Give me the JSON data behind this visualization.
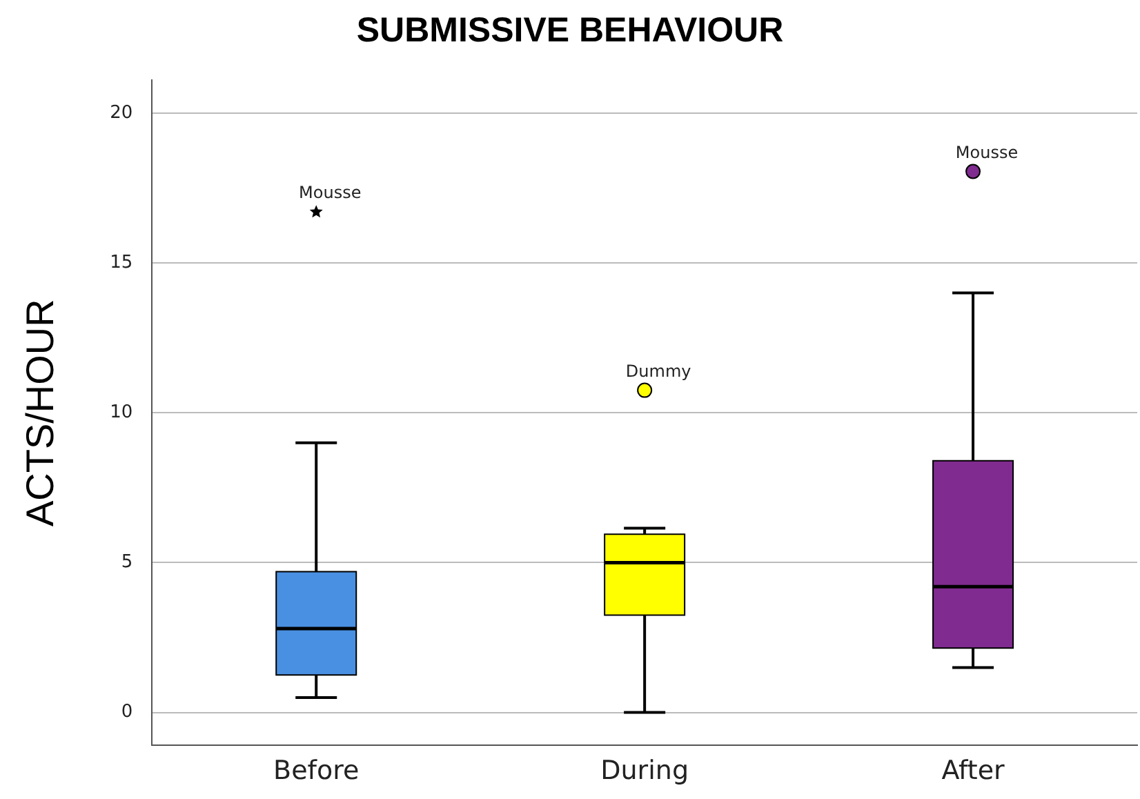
{
  "chart_data": {
    "type": "box",
    "title": "SUBMISSIVE BEHAVIOUR",
    "ylabel": "ACTS/HOUR",
    "categories": [
      "Before",
      "During",
      "After"
    ],
    "series": [
      {
        "color": "#4a90e2",
        "marker": "star",
        "boxes": [
          {
            "low": 0.5,
            "q1": 1.25,
            "median": 2.8,
            "q3": 4.7,
            "high": 9.0,
            "outliers": [
              16.7
            ]
          },
          null,
          null
        ]
      },
      {
        "color": "#ffff00",
        "marker": "circle",
        "boxes": [
          null,
          {
            "low": 0,
            "q1": 3.25,
            "median": 5.0,
            "q3": 5.95,
            "high": 6.15,
            "outliers": [
              10.75
            ]
          },
          null
        ]
      },
      {
        "color": "#7f2b8f",
        "marker": "circle",
        "boxes": [
          null,
          null,
          {
            "low": 1.5,
            "q1": 2.15,
            "median": 4.2,
            "q3": 8.4,
            "high": 14.0,
            "outliers": [
              18.05
            ]
          }
        ]
      }
    ],
    "ylim": [
      -1.1,
      21.1
    ],
    "yticks": [
      0,
      5,
      10,
      15,
      20
    ],
    "grid": "y",
    "legend": false,
    "annotations": [
      "Mousse",
      "Dummy",
      "Mousse"
    ]
  }
}
